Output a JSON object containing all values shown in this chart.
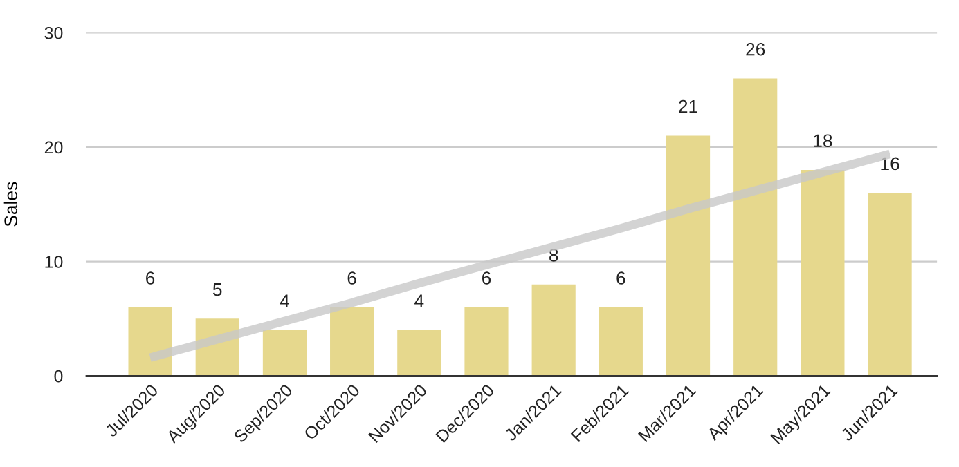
{
  "chart_data": {
    "type": "bar",
    "ylabel": "Sales",
    "categories": [
      "Jul/2020",
      "Aug/2020",
      "Sep/2020",
      "Oct/2020",
      "Nov/2020",
      "Dec/2020",
      "Jan/2021",
      "Feb/2021",
      "Mar/2021",
      "Apr/2021",
      "May/2021",
      "Jun/2021"
    ],
    "series": [
      {
        "color": "#e6d88d",
        "values": [
          6,
          5,
          4,
          6,
          4,
          6,
          8,
          6,
          21,
          26,
          18,
          16
        ],
        "value_labels": [
          "6",
          "5",
          "4",
          "6",
          "4",
          "6",
          "8",
          "6",
          "21",
          "26",
          "18",
          "16"
        ]
      },
      {
        "type": "line",
        "color": "#c8c8c8",
        "values": [
          1.6,
          3.2,
          4.8,
          6.4,
          8.1,
          9.7,
          11.3,
          12.9,
          14.6,
          16.2,
          17.8,
          19.4
        ]
      }
    ],
    "ylim": [
      0,
      30
    ],
    "yticks": [
      0,
      10,
      20,
      30
    ],
    "grid": "y",
    "legend": false
  }
}
